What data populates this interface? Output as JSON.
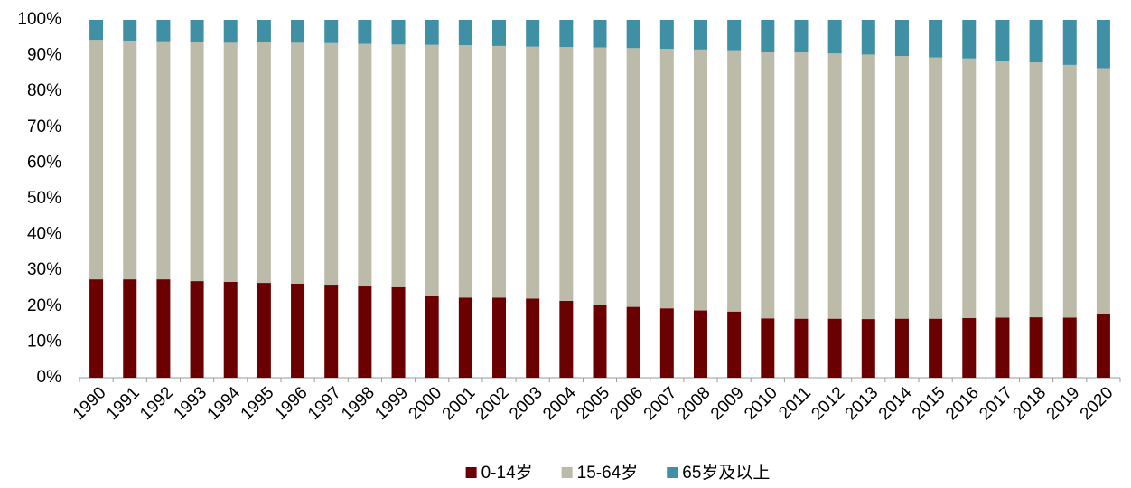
{
  "chart_data": {
    "type": "stacked_bar",
    "categories": [
      "1990",
      "1991",
      "1992",
      "1993",
      "1994",
      "1995",
      "1996",
      "1997",
      "1998",
      "1999",
      "2000",
      "2001",
      "2002",
      "2003",
      "2004",
      "2005",
      "2006",
      "2007",
      "2008",
      "2009",
      "2010",
      "2011",
      "2012",
      "2013",
      "2014",
      "2015",
      "2016",
      "2017",
      "2018",
      "2019",
      "2020"
    ],
    "series": [
      {
        "name": "0-14岁",
        "color": "#6b0000",
        "values": [
          27.5,
          27.5,
          27.5,
          27.0,
          26.8,
          26.5,
          26.3,
          26.0,
          25.5,
          25.3,
          22.9,
          22.4,
          22.4,
          22.1,
          21.5,
          20.3,
          19.8,
          19.4,
          18.8,
          18.5,
          16.6,
          16.5,
          16.5,
          16.4,
          16.5,
          16.5,
          16.7,
          16.8,
          16.9,
          16.8,
          17.9
        ]
      },
      {
        "name": "15-64岁",
        "color": "#bcbaa8",
        "values": [
          66.9,
          66.7,
          66.5,
          66.8,
          66.8,
          67.3,
          67.3,
          67.5,
          67.8,
          67.8,
          70.1,
          70.5,
          70.3,
          70.4,
          70.9,
          72.0,
          72.3,
          72.5,
          72.9,
          73.0,
          74.5,
          74.4,
          74.1,
          73.9,
          73.4,
          73.0,
          72.5,
          71.8,
          71.2,
          70.6,
          68.6
        ]
      },
      {
        "name": "65岁及以上",
        "color": "#3f8fa5",
        "values": [
          5.6,
          5.8,
          6.0,
          6.2,
          6.4,
          6.2,
          6.4,
          6.5,
          6.7,
          6.9,
          7.0,
          7.1,
          7.3,
          7.5,
          7.6,
          7.7,
          7.9,
          8.1,
          8.3,
          8.5,
          8.9,
          9.1,
          9.4,
          9.7,
          10.1,
          10.5,
          10.8,
          11.4,
          11.9,
          12.6,
          13.5
        ]
      }
    ],
    "ylim": [
      0,
      100
    ],
    "yticks": [
      {
        "value": 0,
        "label": "0%"
      },
      {
        "value": 10,
        "label": "10%"
      },
      {
        "value": 20,
        "label": "20%"
      },
      {
        "value": 30,
        "label": "30%"
      },
      {
        "value": 40,
        "label": "40%"
      },
      {
        "value": 50,
        "label": "50%"
      },
      {
        "value": 60,
        "label": "60%"
      },
      {
        "value": 70,
        "label": "70%"
      },
      {
        "value": 80,
        "label": "80%"
      },
      {
        "value": 90,
        "label": "90%"
      },
      {
        "value": 100,
        "label": "100%"
      }
    ],
    "legend": "bottom"
  }
}
